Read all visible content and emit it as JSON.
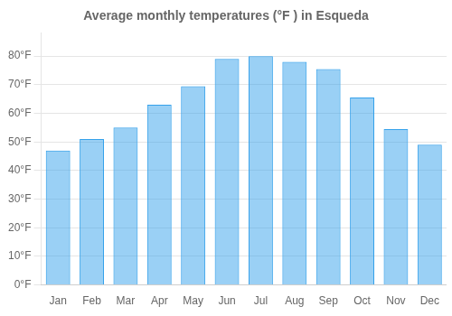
{
  "chart_data": {
    "type": "bar",
    "title": "Average monthly temperatures (°F ) in Esqueda",
    "categories": [
      "Jan",
      "Feb",
      "Mar",
      "Apr",
      "May",
      "Jun",
      "Jul",
      "Aug",
      "Sep",
      "Oct",
      "Nov",
      "Dec"
    ],
    "values": [
      47,
      51,
      55,
      63,
      69.5,
      79,
      80,
      78,
      75.5,
      65.5,
      54.5,
      49
    ],
    "ylim": [
      0,
      88
    ],
    "yticks": [
      {
        "value": 0,
        "label": "0°F"
      },
      {
        "value": 10,
        "label": "10°F"
      },
      {
        "value": 20,
        "label": "20°F"
      },
      {
        "value": 30,
        "label": "30°F"
      },
      {
        "value": 40,
        "label": "40°F"
      },
      {
        "value": 50,
        "label": "50°F"
      },
      {
        "value": 60,
        "label": "60°F"
      },
      {
        "value": 70,
        "label": "70°F"
      },
      {
        "value": 80,
        "label": "80°F"
      }
    ],
    "grid": true
  }
}
